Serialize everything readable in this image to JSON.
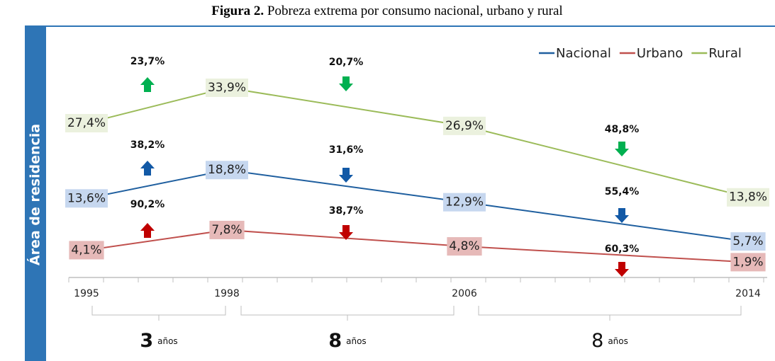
{
  "chart_data": {
    "type": "line",
    "title_label": "Figura 2.",
    "title": "Pobreza extrema por consumo nacional, urbano y rural",
    "side_label": "Área de residencia",
    "categories": [
      "1995",
      "1998",
      "2006",
      "2014"
    ],
    "series": [
      {
        "name": "Nacional",
        "color": "#1f5f9f",
        "label_bg": "#c6d7ef",
        "arrow_color": "#1259a6",
        "values": [
          13.6,
          18.8,
          12.9,
          5.7
        ],
        "value_labels": [
          "13,6%",
          "18,8%",
          "12,9%",
          "5,7%"
        ],
        "changes": [
          38.2,
          31.6,
          55.4
        ],
        "change_labels": [
          "38,2%",
          "31,6%",
          "55,4%"
        ],
        "change_directions": [
          "up",
          "down",
          "down"
        ]
      },
      {
        "name": "Urbano",
        "color": "#c0504d",
        "label_bg": "#e6b9b8",
        "arrow_color": "#c00000",
        "values": [
          4.1,
          7.8,
          4.8,
          1.9
        ],
        "value_labels": [
          "4,1%",
          "7,8%",
          "4,8%",
          "1,9%"
        ],
        "changes": [
          90.2,
          38.7,
          60.3
        ],
        "change_labels": [
          "90,2%",
          "38,7%",
          "60,3%"
        ],
        "change_directions": [
          "up",
          "down",
          "down"
        ]
      },
      {
        "name": "Rural",
        "color": "#9bbb59",
        "label_bg": "#ebf1de",
        "arrow_color": "#00b050",
        "values": [
          27.4,
          33.9,
          26.9,
          13.8
        ],
        "value_labels": [
          "27,4%",
          "33,9%",
          "26,9%",
          "13,8%"
        ],
        "changes": [
          23.7,
          20.7,
          48.8
        ],
        "change_labels": [
          "23,7%",
          "20,7%",
          "48,8%"
        ],
        "change_directions": [
          "up",
          "down",
          "down"
        ]
      }
    ],
    "intervals": [
      3,
      8,
      8
    ],
    "interval_unit": "años"
  }
}
